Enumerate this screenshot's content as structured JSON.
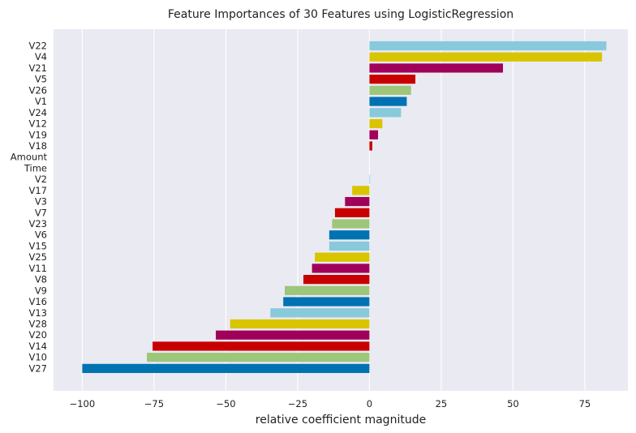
{
  "chart_data": {
    "type": "bar",
    "orientation": "horizontal",
    "title": "Feature Importances of 30 Features using LogisticRegression",
    "xlabel": "relative coefficient magnitude",
    "ylabel": "",
    "xlim": [
      -110,
      90
    ],
    "xticks": [
      -100,
      -75,
      -50,
      -25,
      0,
      25,
      50,
      75
    ],
    "xtick_labels": [
      "−100",
      "−75",
      "−50",
      "−25",
      "0",
      "25",
      "50",
      "75"
    ],
    "grid": true,
    "background": "#eaeaf2",
    "palette": [
      "#0072b2",
      "#9dc67a",
      "#c80000",
      "#a0005a",
      "#d9c400",
      "#88c9dc"
    ],
    "categories": [
      "V22",
      "V4",
      "V21",
      "V5",
      "V26",
      "V1",
      "V24",
      "V12",
      "V19",
      "V18",
      "Amount",
      "Time",
      "V2",
      "V17",
      "V3",
      "V7",
      "V23",
      "V6",
      "V15",
      "V25",
      "V11",
      "V8",
      "V9",
      "V16",
      "V13",
      "V28",
      "V20",
      "V14",
      "V10",
      "V27"
    ],
    "values": [
      82.5,
      81,
      46.5,
      16,
      14.5,
      13,
      11,
      4.5,
      3,
      1,
      0,
      0,
      0.2,
      -6,
      -8.5,
      -12,
      -13,
      -14,
      -14,
      -19,
      -20,
      -23,
      -29.5,
      -30,
      -34.5,
      -48.5,
      -53.5,
      -75.5,
      -77.5,
      -100
    ],
    "colors": [
      "#88c9dc",
      "#d9c400",
      "#a0005a",
      "#c80000",
      "#9dc67a",
      "#0072b2",
      "#88c9dc",
      "#d9c400",
      "#a0005a",
      "#c80000",
      "#9dc67a",
      "#0072b2",
      "#88c9dc",
      "#d9c400",
      "#a0005a",
      "#c80000",
      "#9dc67a",
      "#0072b2",
      "#88c9dc",
      "#d9c400",
      "#a0005a",
      "#c80000",
      "#9dc67a",
      "#0072b2",
      "#88c9dc",
      "#d9c400",
      "#a0005a",
      "#c80000",
      "#9dc67a",
      "#0072b2"
    ]
  }
}
